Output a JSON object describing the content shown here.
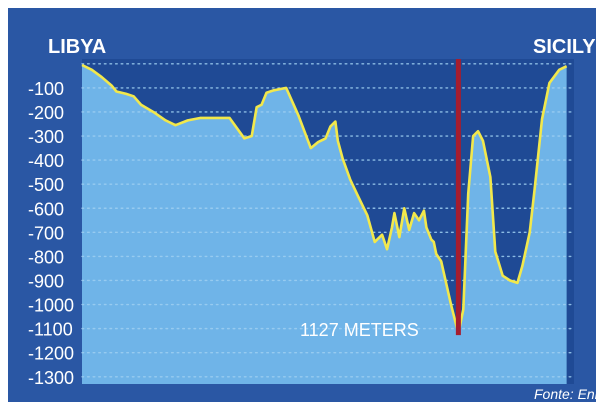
{
  "chart_data": {
    "type": "area",
    "title": "",
    "xlabel": "",
    "ylabel": "",
    "left_label": "LIBYA",
    "right_label": "SICILY",
    "source": "Fonte: Eni",
    "annotation": {
      "text": "1127 METERS",
      "x": 76.5,
      "y": -1127
    },
    "ylim": [
      -1330,
      20
    ],
    "xlim": [
      0,
      100
    ],
    "yticks": [
      -100,
      -200,
      -300,
      -400,
      -500,
      -600,
      -700,
      -800,
      -900,
      -1000,
      -1100,
      -1200,
      -1300
    ],
    "ytick_labels": [
      "-100",
      "-200",
      "-300",
      "-400",
      "-500",
      "-600",
      "-700",
      "-800",
      "-900",
      "-1000",
      "-1100",
      "-1200",
      "-1300"
    ],
    "grid": true,
    "colors": {
      "frame": "#2a57a4",
      "deep_water": "#1f4a95",
      "sea_floor_fill": "#6fb4e8",
      "profile_line": "#f2e84b",
      "marker_line": "#a51d2f",
      "grid_dots": "#9fd0f2",
      "text": "#ffffff"
    },
    "series": [
      {
        "x": [
          0,
          2,
          4,
          6,
          7,
          9,
          10.5,
          12,
          14.5,
          17,
          19,
          21.5,
          24,
          27,
          30,
          33,
          34.5,
          35.5,
          36.5,
          37.5,
          39,
          41.5,
          44,
          46.5,
          48,
          49.5,
          50.5,
          51.5,
          52,
          53,
          54.5,
          56,
          58,
          59.5,
          61,
          62,
          63,
          63.5,
          64.5,
          65.5,
          66.5,
          67.5,
          68.5,
          69.5,
          70,
          71,
          71.5,
          72,
          73,
          74,
          75,
          76.5,
          77.5,
          78.5,
          79.5,
          80.5,
          81.5,
          83,
          84,
          85.5,
          87,
          88.5,
          89.5,
          91,
          92,
          93.5,
          95,
          97,
          98.5
        ],
        "y": [
          -5,
          -25,
          -55,
          -90,
          -115,
          -125,
          -135,
          -170,
          -200,
          -235,
          -255,
          -235,
          -225,
          -225,
          -225,
          -310,
          -300,
          -180,
          -170,
          -120,
          -110,
          -100,
          -215,
          -350,
          -325,
          -310,
          -260,
          -240,
          -320,
          -395,
          -480,
          -545,
          -630,
          -740,
          -710,
          -770,
          -680,
          -620,
          -720,
          -600,
          -690,
          -620,
          -650,
          -610,
          -680,
          -730,
          -740,
          -790,
          -820,
          -910,
          -1000,
          -1120,
          -1020,
          -540,
          -300,
          -280,
          -320,
          -470,
          -780,
          -880,
          -900,
          -910,
          -840,
          -700,
          -520,
          -230,
          -80,
          -25,
          -10
        ]
      }
    ]
  }
}
